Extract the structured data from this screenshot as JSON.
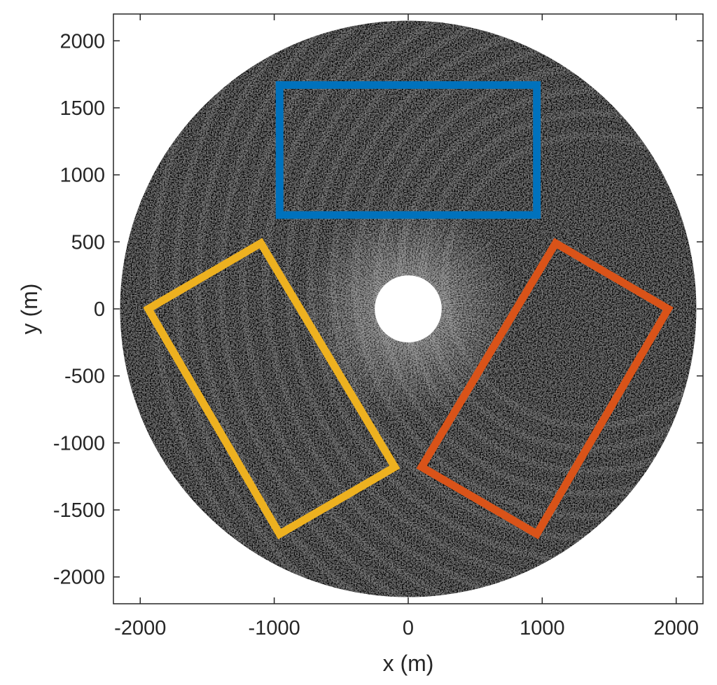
{
  "chart_data": {
    "type": "image",
    "title": "",
    "xlabel": "x (m)",
    "ylabel": "y (m)",
    "xlim": [
      -2200,
      2200
    ],
    "ylim": [
      -2200,
      2200
    ],
    "xticks": [
      -2000,
      -1000,
      0,
      1000,
      2000
    ],
    "yticks": [
      -2000,
      -1500,
      -1000,
      -500,
      0,
      500,
      1000,
      1500,
      2000
    ],
    "xtick_labels": [
      "-2000",
      "-1000",
      "0",
      "1000",
      "2000"
    ],
    "ytick_labels": [
      "-2000",
      "-1500",
      "-1000",
      "-500",
      "0",
      "500",
      "1000",
      "1500",
      "2000"
    ],
    "grid": false,
    "radar_image": {
      "outer_radius_m": 2150,
      "inner_blank_radius_m": 250,
      "colormap": "gray"
    },
    "regions": [
      {
        "color": "#0072BD",
        "vertices": [
          [
            -960,
            1670
          ],
          [
            960,
            1670
          ],
          [
            960,
            700
          ],
          [
            -960,
            700
          ]
        ]
      },
      {
        "color": "#EDB120",
        "vertices": [
          [
            -1940,
            0
          ],
          [
            -1100,
            490
          ],
          [
            -100,
            -1180
          ],
          [
            -960,
            -1680
          ]
        ]
      },
      {
        "color": "#D95319",
        "vertices": [
          [
            1940,
            0
          ],
          [
            1100,
            490
          ],
          [
            100,
            -1180
          ],
          [
            960,
            -1680
          ]
        ]
      }
    ]
  }
}
